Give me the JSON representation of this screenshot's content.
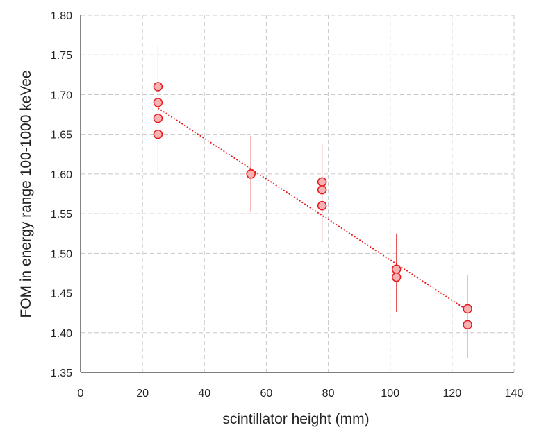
{
  "chart_data": {
    "type": "scatter",
    "xlabel": "scintillator height (mm)",
    "ylabel": "FOM in energy range 100-1000 keVee",
    "xlim": [
      0,
      140
    ],
    "ylim": [
      1.35,
      1.8
    ],
    "xticks": [
      0,
      20,
      40,
      60,
      80,
      100,
      120,
      140
    ],
    "yticks": [
      1.35,
      1.4,
      1.45,
      1.5,
      1.55,
      1.6,
      1.65,
      1.7,
      1.75,
      1.8
    ],
    "xtick_labels": [
      "0",
      "20",
      "40",
      "60",
      "80",
      "100",
      "120",
      "140"
    ],
    "ytick_labels": [
      "1.35",
      "1.40",
      "1.45",
      "1.50",
      "1.55",
      "1.60",
      "1.65",
      "1.70",
      "1.75",
      "1.80"
    ],
    "grid": true,
    "legend": false,
    "points": [
      {
        "x": 25,
        "y": 1.71
      },
      {
        "x": 25,
        "y": 1.69
      },
      {
        "x": 25,
        "y": 1.67
      },
      {
        "x": 25,
        "y": 1.65
      },
      {
        "x": 55,
        "y": 1.6
      },
      {
        "x": 55,
        "y": 1.6
      },
      {
        "x": 78,
        "y": 1.59
      },
      {
        "x": 78,
        "y": 1.58
      },
      {
        "x": 78,
        "y": 1.56
      },
      {
        "x": 102,
        "y": 1.48
      },
      {
        "x": 102,
        "y": 1.47
      },
      {
        "x": 125,
        "y": 1.43
      },
      {
        "x": 125,
        "y": 1.41
      }
    ],
    "error_bars": [
      {
        "x": 25,
        "y_low": 1.6,
        "y_high": 1.762
      },
      {
        "x": 55,
        "y_low": 1.552,
        "y_high": 1.648
      },
      {
        "x": 78,
        "y_low": 1.514,
        "y_high": 1.638
      },
      {
        "x": 102,
        "y_low": 1.426,
        "y_high": 1.525
      },
      {
        "x": 125,
        "y_low": 1.368,
        "y_high": 1.473
      }
    ],
    "trendline": {
      "type": "linear",
      "x_start": 25,
      "y_start": 1.683,
      "x_end": 125,
      "y_end": 1.428
    },
    "colors": {
      "marker_stroke": "#e8191d",
      "marker_fill": "#f6b3b3",
      "error_bar": "#e04040",
      "trendline": "#e8191d",
      "grid": "#c8c8c8",
      "axis": "#333333"
    }
  }
}
